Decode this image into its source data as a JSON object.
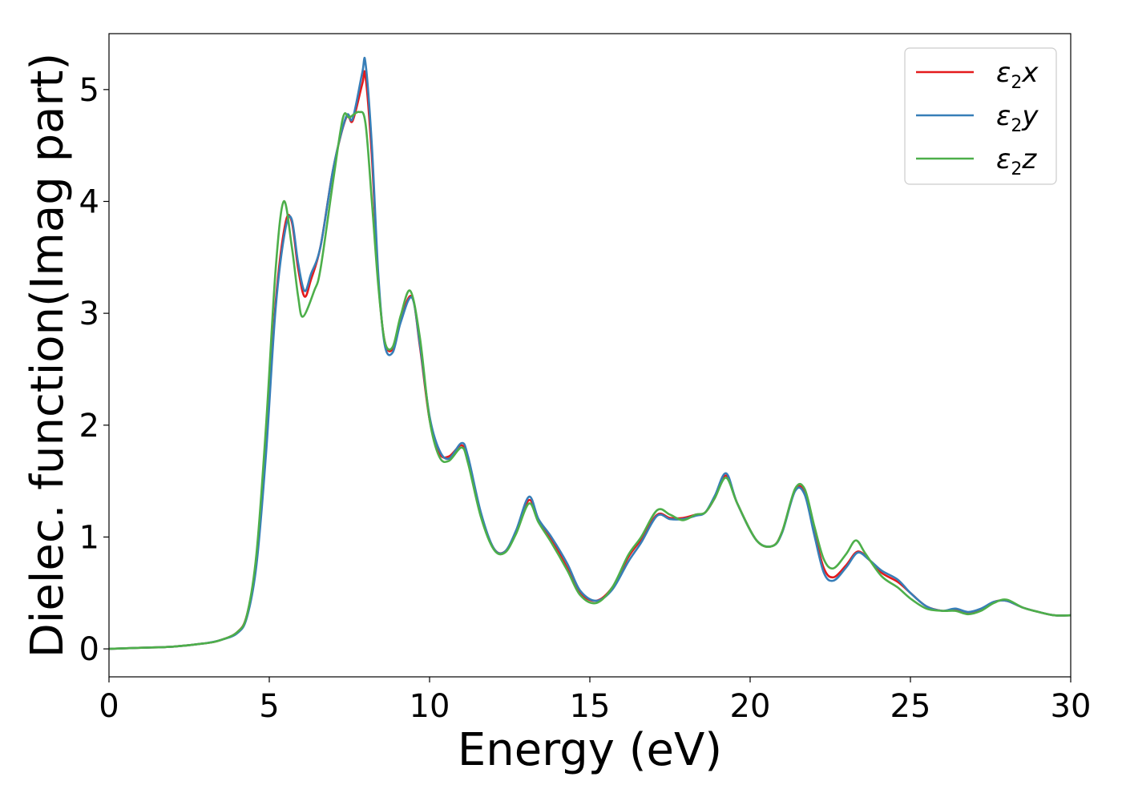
{
  "chart_data": {
    "type": "line",
    "title": "",
    "xlabel": "Energy (eV)",
    "ylabel": "Dielec. function(Imag part)",
    "xlim": [
      0,
      30
    ],
    "ylim": [
      -0.25,
      5.5
    ],
    "xticks": [
      0,
      5,
      10,
      15,
      20,
      25,
      30
    ],
    "yticks": [
      0,
      1,
      2,
      3,
      4,
      5
    ],
    "grid": false,
    "legend_position": "top-right",
    "series": [
      {
        "name": "ε₂x",
        "symbol": "ε",
        "sub": "2",
        "var": "x",
        "color": "#e41a1c",
        "x": [
          0,
          1,
          2,
          3,
          3.5,
          4,
          4.3,
          4.6,
          4.9,
          5.2,
          5.5,
          5.7,
          5.9,
          6.1,
          6.3,
          6.6,
          7.0,
          7.4,
          7.6,
          7.9,
          8.0,
          8.2,
          8.4,
          8.6,
          8.85,
          9.1,
          9.45,
          9.7,
          10.0,
          10.3,
          10.6,
          11.0,
          11.2,
          11.6,
          12.0,
          12.35,
          12.7,
          13.1,
          13.4,
          13.8,
          14.3,
          14.7,
          15.2,
          15.7,
          16.2,
          16.6,
          17.1,
          17.5,
          17.9,
          18.3,
          18.6,
          18.9,
          19.25,
          19.6,
          20.2,
          20.7,
          21.0,
          21.4,
          21.7,
          22.0,
          22.3,
          22.6,
          23.0,
          23.35,
          23.7,
          24.1,
          24.6,
          25.0,
          25.5,
          26.0,
          26.4,
          26.8,
          27.2,
          27.6,
          28.0,
          28.5,
          29.0,
          29.5,
          30
        ],
        "y": [
          0,
          0.01,
          0.02,
          0.05,
          0.08,
          0.15,
          0.3,
          0.8,
          1.8,
          3.1,
          3.8,
          3.82,
          3.4,
          3.15,
          3.3,
          3.6,
          4.3,
          4.75,
          4.72,
          5.05,
          5.12,
          4.4,
          3.3,
          2.75,
          2.68,
          2.95,
          3.15,
          2.7,
          2.05,
          1.75,
          1.72,
          1.82,
          1.68,
          1.2,
          0.9,
          0.87,
          1.05,
          1.33,
          1.15,
          0.98,
          0.72,
          0.5,
          0.43,
          0.55,
          0.82,
          0.98,
          1.2,
          1.17,
          1.17,
          1.2,
          1.22,
          1.35,
          1.55,
          1.3,
          0.97,
          0.92,
          1.05,
          1.42,
          1.4,
          1.05,
          0.72,
          0.64,
          0.75,
          0.87,
          0.8,
          0.68,
          0.6,
          0.5,
          0.38,
          0.34,
          0.35,
          0.32,
          0.35,
          0.42,
          0.43,
          0.37,
          0.33,
          0.3,
          0.3
        ]
      },
      {
        "name": "ε₂y",
        "symbol": "ε",
        "sub": "2",
        "var": "y",
        "color": "#377eb8",
        "x": [
          0,
          1,
          2,
          3,
          3.5,
          4,
          4.3,
          4.6,
          4.9,
          5.2,
          5.5,
          5.7,
          5.9,
          6.1,
          6.3,
          6.6,
          7.0,
          7.4,
          7.6,
          7.9,
          8.0,
          8.2,
          8.4,
          8.6,
          8.85,
          9.1,
          9.45,
          9.7,
          10.0,
          10.3,
          10.6,
          11.0,
          11.2,
          11.6,
          12.0,
          12.35,
          12.7,
          13.1,
          13.4,
          13.8,
          14.3,
          14.7,
          15.2,
          15.7,
          16.2,
          16.6,
          17.1,
          17.5,
          17.9,
          18.3,
          18.6,
          18.9,
          19.25,
          19.6,
          20.2,
          20.7,
          21.0,
          21.4,
          21.7,
          22.0,
          22.3,
          22.6,
          23.0,
          23.35,
          23.7,
          24.1,
          24.6,
          25.0,
          25.5,
          26.0,
          26.4,
          26.8,
          27.2,
          27.6,
          28.0,
          28.5,
          29.0,
          29.5,
          30
        ],
        "y": [
          0,
          0.01,
          0.02,
          0.05,
          0.08,
          0.14,
          0.28,
          0.75,
          1.75,
          3.05,
          3.75,
          3.84,
          3.45,
          3.2,
          3.35,
          3.6,
          4.3,
          4.76,
          4.74,
          5.15,
          5.24,
          4.5,
          3.35,
          2.72,
          2.65,
          2.92,
          3.14,
          2.72,
          2.08,
          1.78,
          1.7,
          1.84,
          1.72,
          1.22,
          0.9,
          0.87,
          1.06,
          1.36,
          1.16,
          1.0,
          0.76,
          0.52,
          0.43,
          0.53,
          0.78,
          0.95,
          1.19,
          1.16,
          1.16,
          1.19,
          1.22,
          1.37,
          1.57,
          1.3,
          0.97,
          0.92,
          1.04,
          1.41,
          1.38,
          1.02,
          0.68,
          0.61,
          0.73,
          0.86,
          0.8,
          0.7,
          0.62,
          0.5,
          0.38,
          0.34,
          0.36,
          0.33,
          0.36,
          0.42,
          0.43,
          0.37,
          0.33,
          0.3,
          0.3
        ]
      },
      {
        "name": "ε₂z",
        "symbol": "ε",
        "sub": "2",
        "var": "z",
        "color": "#4daf4a",
        "x": [
          0,
          1,
          2,
          3,
          3.5,
          4,
          4.3,
          4.6,
          4.9,
          5.2,
          5.45,
          5.7,
          5.9,
          6.05,
          6.4,
          6.6,
          7.0,
          7.3,
          7.5,
          7.8,
          8.0,
          8.2,
          8.4,
          8.6,
          8.85,
          9.1,
          9.4,
          9.7,
          10.0,
          10.3,
          10.6,
          11.0,
          11.2,
          11.6,
          12.0,
          12.35,
          12.7,
          13.1,
          13.4,
          13.8,
          14.3,
          14.7,
          15.2,
          15.7,
          16.2,
          16.6,
          17.1,
          17.5,
          17.9,
          18.3,
          18.6,
          18.9,
          19.25,
          19.6,
          20.2,
          20.7,
          21.0,
          21.4,
          21.7,
          22.0,
          22.3,
          22.6,
          23.0,
          23.3,
          23.6,
          24.1,
          24.6,
          25.0,
          25.5,
          26.0,
          26.4,
          26.8,
          27.2,
          27.6,
          28.0,
          28.5,
          29.0,
          29.5,
          30
        ],
        "y": [
          0,
          0.01,
          0.02,
          0.05,
          0.08,
          0.15,
          0.3,
          0.85,
          2.0,
          3.4,
          4.0,
          3.6,
          3.15,
          2.97,
          3.2,
          3.4,
          4.2,
          4.75,
          4.75,
          4.8,
          4.7,
          4.0,
          3.25,
          2.75,
          2.7,
          2.98,
          3.2,
          2.78,
          2.05,
          1.72,
          1.68,
          1.8,
          1.66,
          1.18,
          0.89,
          0.86,
          1.03,
          1.3,
          1.13,
          0.95,
          0.7,
          0.48,
          0.41,
          0.55,
          0.84,
          1.0,
          1.24,
          1.2,
          1.15,
          1.2,
          1.22,
          1.35,
          1.53,
          1.3,
          0.97,
          0.92,
          1.05,
          1.43,
          1.43,
          1.1,
          0.8,
          0.72,
          0.85,
          0.97,
          0.85,
          0.65,
          0.55,
          0.45,
          0.36,
          0.34,
          0.34,
          0.31,
          0.34,
          0.41,
          0.44,
          0.37,
          0.33,
          0.3,
          0.3
        ]
      }
    ]
  }
}
